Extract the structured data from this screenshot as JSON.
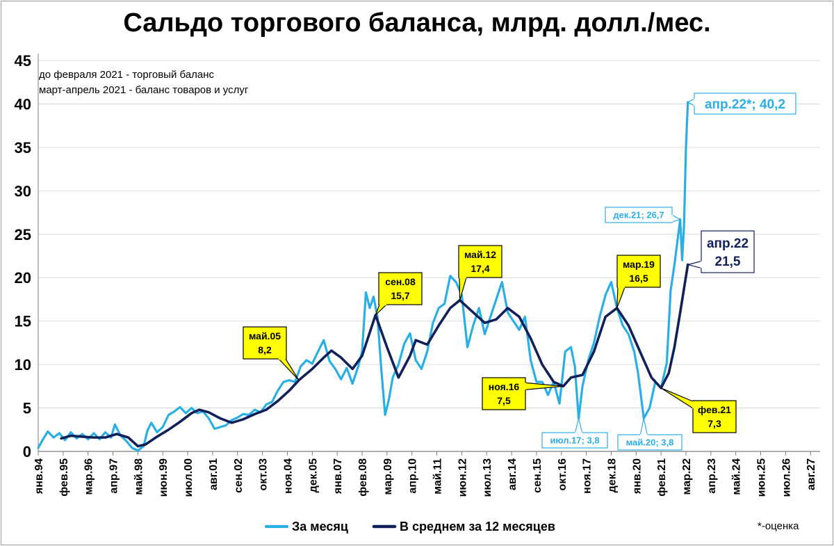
{
  "chart_data": {
    "type": "line",
    "title": "Сальдо торгового баланса, млрд. долл./мес.",
    "notes": [
      "до февраля 2021 - торговый баланс",
      "март-апрель 2021 - баланс товаров и услуг"
    ],
    "footnote": "*-оценка",
    "ylim": [
      0,
      45
    ],
    "yticks": [
      0,
      5,
      10,
      15,
      20,
      25,
      30,
      35,
      40,
      45
    ],
    "x_range": [
      "1994-01",
      "2027-12"
    ],
    "x_ticks": [
      {
        "date": "1994-01",
        "label": "янв.94"
      },
      {
        "date": "1995-02",
        "label": "фев.95"
      },
      {
        "date": "1996-03",
        "label": "мар.96"
      },
      {
        "date": "1997-04",
        "label": "апр.97"
      },
      {
        "date": "1998-05",
        "label": "май.98"
      },
      {
        "date": "1999-06",
        "label": "июн.99"
      },
      {
        "date": "2000-07",
        "label": "июл.00"
      },
      {
        "date": "2001-08",
        "label": "авг.01"
      },
      {
        "date": "2002-09",
        "label": "сен.02"
      },
      {
        "date": "2003-10",
        "label": "окт.03"
      },
      {
        "date": "2004-11",
        "label": "ноя.04"
      },
      {
        "date": "2005-12",
        "label": "дек.05"
      },
      {
        "date": "2007-01",
        "label": "янв.07"
      },
      {
        "date": "2008-02",
        "label": "фев.08"
      },
      {
        "date": "2009-03",
        "label": "мар.09"
      },
      {
        "date": "2010-04",
        "label": "апр.10"
      },
      {
        "date": "2011-05",
        "label": "май.11"
      },
      {
        "date": "2012-06",
        "label": "июн.12"
      },
      {
        "date": "2013-07",
        "label": "июл.13"
      },
      {
        "date": "2014-08",
        "label": "авг.14"
      },
      {
        "date": "2015-09",
        "label": "сен.15"
      },
      {
        "date": "2016-10",
        "label": "окт.16"
      },
      {
        "date": "2017-11",
        "label": "ноя.17"
      },
      {
        "date": "2018-12",
        "label": "дек.18"
      },
      {
        "date": "2020-01",
        "label": "янв.20"
      },
      {
        "date": "2021-02",
        "label": "фев.21"
      },
      {
        "date": "2022-03",
        "label": "мар.22"
      },
      {
        "date": "2023-04",
        "label": "апр.23"
      },
      {
        "date": "2024-05",
        "label": "май.24"
      },
      {
        "date": "2025-06",
        "label": "июн.25"
      },
      {
        "date": "2026-07",
        "label": "июл.26"
      },
      {
        "date": "2027-08",
        "label": "авг.27"
      }
    ],
    "legend": {
      "position": "bottom",
      "items": [
        "За месяц",
        "В среднем за 12 месяцев"
      ]
    },
    "series": [
      {
        "name": "За месяц",
        "color": "#29aee6",
        "points": [
          [
            "1994-01",
            0.4
          ],
          [
            "1994-03",
            1.2
          ],
          [
            "1994-06",
            2.3
          ],
          [
            "1994-09",
            1.6
          ],
          [
            "1994-12",
            2.1
          ],
          [
            "1995-03",
            1.3
          ],
          [
            "1995-06",
            2.2
          ],
          [
            "1995-09",
            1.5
          ],
          [
            "1995-12",
            2.0
          ],
          [
            "1996-03",
            1.4
          ],
          [
            "1996-06",
            2.1
          ],
          [
            "1996-09",
            1.4
          ],
          [
            "1996-12",
            2.2
          ],
          [
            "1997-03",
            1.6
          ],
          [
            "1997-05",
            3.1
          ],
          [
            "1997-08",
            1.8
          ],
          [
            "1997-11",
            1.2
          ],
          [
            "1998-02",
            0.4
          ],
          [
            "1998-05",
            0.1
          ],
          [
            "1998-08",
            0.6
          ],
          [
            "1998-10",
            2.4
          ],
          [
            "1998-12",
            3.3
          ],
          [
            "1999-03",
            2.2
          ],
          [
            "1999-06",
            2.8
          ],
          [
            "1999-09",
            4.2
          ],
          [
            "1999-12",
            4.6
          ],
          [
            "2000-03",
            5.1
          ],
          [
            "2000-06",
            4.4
          ],
          [
            "2000-09",
            5.0
          ],
          [
            "2000-12",
            4.4
          ],
          [
            "2001-03",
            4.6
          ],
          [
            "2001-06",
            3.8
          ],
          [
            "2001-09",
            2.6
          ],
          [
            "2001-12",
            2.8
          ],
          [
            "2002-03",
            3.0
          ],
          [
            "2002-06",
            3.6
          ],
          [
            "2002-09",
            3.9
          ],
          [
            "2002-12",
            4.3
          ],
          [
            "2003-03",
            4.2
          ],
          [
            "2003-06",
            4.8
          ],
          [
            "2003-09",
            4.5
          ],
          [
            "2003-12",
            5.4
          ],
          [
            "2004-03",
            5.7
          ],
          [
            "2004-06",
            7.0
          ],
          [
            "2004-09",
            8.0
          ],
          [
            "2004-12",
            8.2
          ],
          [
            "2005-03",
            8.0
          ],
          [
            "2005-06",
            9.8
          ],
          [
            "2005-09",
            10.5
          ],
          [
            "2005-12",
            10.1
          ],
          [
            "2006-03",
            11.5
          ],
          [
            "2006-06",
            12.8
          ],
          [
            "2006-09",
            10.4
          ],
          [
            "2006-12",
            9.5
          ],
          [
            "2007-03",
            8.3
          ],
          [
            "2007-06",
            9.6
          ],
          [
            "2007-09",
            7.8
          ],
          [
            "2007-12",
            9.8
          ],
          [
            "2008-02",
            11.5
          ],
          [
            "2008-04",
            18.3
          ],
          [
            "2008-06",
            16.5
          ],
          [
            "2008-08",
            17.8
          ],
          [
            "2008-10",
            15.5
          ],
          [
            "2008-12",
            9.5
          ],
          [
            "2009-02",
            4.2
          ],
          [
            "2009-04",
            6.0
          ],
          [
            "2009-06",
            8.5
          ],
          [
            "2009-09",
            10.0
          ],
          [
            "2009-12",
            12.4
          ],
          [
            "2010-03",
            13.6
          ],
          [
            "2010-06",
            10.5
          ],
          [
            "2010-09",
            9.5
          ],
          [
            "2010-12",
            11.5
          ],
          [
            "2011-03",
            14.8
          ],
          [
            "2011-06",
            16.5
          ],
          [
            "2011-09",
            17.0
          ],
          [
            "2011-12",
            20.2
          ],
          [
            "2012-03",
            19.5
          ],
          [
            "2012-06",
            18.0
          ],
          [
            "2012-09",
            12.0
          ],
          [
            "2012-12",
            14.5
          ],
          [
            "2013-03",
            16.5
          ],
          [
            "2013-06",
            13.5
          ],
          [
            "2013-09",
            15.5
          ],
          [
            "2013-12",
            17.5
          ],
          [
            "2014-03",
            19.5
          ],
          [
            "2014-06",
            16.0
          ],
          [
            "2014-09",
            15.0
          ],
          [
            "2014-12",
            14.0
          ],
          [
            "2015-03",
            15.5
          ],
          [
            "2015-06",
            10.5
          ],
          [
            "2015-09",
            8.0
          ],
          [
            "2015-12",
            8.0
          ],
          [
            "2016-03",
            6.5
          ],
          [
            "2016-06",
            8.0
          ],
          [
            "2016-09",
            5.5
          ],
          [
            "2016-12",
            11.5
          ],
          [
            "2017-03",
            12.0
          ],
          [
            "2017-05",
            9.8
          ],
          [
            "2017-07",
            3.8
          ],
          [
            "2017-09",
            7.5
          ],
          [
            "2017-12",
            10.5
          ],
          [
            "2018-03",
            12.5
          ],
          [
            "2018-06",
            15.5
          ],
          [
            "2018-09",
            18.0
          ],
          [
            "2018-12",
            19.5
          ],
          [
            "2019-03",
            16.5
          ],
          [
            "2019-06",
            14.5
          ],
          [
            "2019-09",
            13.5
          ],
          [
            "2019-12",
            11.5
          ],
          [
            "2020-02",
            9.0
          ],
          [
            "2020-05",
            3.8
          ],
          [
            "2020-08",
            5.0
          ],
          [
            "2020-11",
            8.0
          ],
          [
            "2021-02",
            7.3
          ],
          [
            "2021-05",
            10.2
          ],
          [
            "2021-07",
            18.5
          ],
          [
            "2021-09",
            21.5
          ],
          [
            "2021-12",
            26.7
          ],
          [
            "2022-01",
            22.0
          ],
          [
            "2022-02",
            26.0
          ],
          [
            "2022-03",
            35.0
          ],
          [
            "2022-04",
            40.2
          ]
        ]
      },
      {
        "name": "В среднем за 12 месяцев",
        "color": "#10205a",
        "points": [
          [
            "1995-01",
            1.5
          ],
          [
            "1995-06",
            1.8
          ],
          [
            "1995-12",
            1.7
          ],
          [
            "1996-06",
            1.6
          ],
          [
            "1996-12",
            1.6
          ],
          [
            "1997-06",
            2.0
          ],
          [
            "1997-12",
            1.6
          ],
          [
            "1998-05",
            0.6
          ],
          [
            "1998-09",
            0.8
          ],
          [
            "1999-03",
            1.7
          ],
          [
            "1999-09",
            2.5
          ],
          [
            "2000-03",
            3.4
          ],
          [
            "2000-09",
            4.4
          ],
          [
            "2001-01",
            4.8
          ],
          [
            "2001-06",
            4.5
          ],
          [
            "2001-12",
            3.8
          ],
          [
            "2002-06",
            3.3
          ],
          [
            "2002-12",
            3.7
          ],
          [
            "2003-06",
            4.3
          ],
          [
            "2003-12",
            4.8
          ],
          [
            "2004-06",
            5.8
          ],
          [
            "2004-12",
            7.0
          ],
          [
            "2005-05",
            8.2
          ],
          [
            "2005-12",
            9.5
          ],
          [
            "2006-06",
            10.8
          ],
          [
            "2006-10",
            11.6
          ],
          [
            "2007-03",
            10.8
          ],
          [
            "2007-09",
            9.5
          ],
          [
            "2008-02",
            11.0
          ],
          [
            "2008-09",
            15.7
          ],
          [
            "2009-03",
            12.0
          ],
          [
            "2009-09",
            8.5
          ],
          [
            "2010-03",
            11.0
          ],
          [
            "2010-06",
            12.8
          ],
          [
            "2010-12",
            12.3
          ],
          [
            "2011-06",
            14.5
          ],
          [
            "2011-12",
            16.5
          ],
          [
            "2012-05",
            17.4
          ],
          [
            "2012-12",
            16.0
          ],
          [
            "2013-06",
            14.8
          ],
          [
            "2013-12",
            15.2
          ],
          [
            "2014-06",
            16.5
          ],
          [
            "2014-12",
            15.5
          ],
          [
            "2015-06",
            13.0
          ],
          [
            "2015-12",
            10.0
          ],
          [
            "2016-06",
            8.0
          ],
          [
            "2016-11",
            7.5
          ],
          [
            "2017-03",
            8.5
          ],
          [
            "2017-09",
            8.8
          ],
          [
            "2018-03",
            11.5
          ],
          [
            "2018-09",
            15.5
          ],
          [
            "2019-03",
            16.5
          ],
          [
            "2019-09",
            14.5
          ],
          [
            "2020-03",
            11.5
          ],
          [
            "2020-09",
            8.5
          ],
          [
            "2021-02",
            7.3
          ],
          [
            "2021-06",
            9.0
          ],
          [
            "2021-09",
            12.0
          ],
          [
            "2021-12",
            16.0
          ],
          [
            "2022-04",
            21.5
          ]
        ]
      }
    ],
    "annotations": [
      {
        "text": [
          "май.05",
          "8,2"
        ],
        "date": "2005-05",
        "value": 8.2,
        "style": "yellow"
      },
      {
        "text": [
          "сен.08",
          "15,7"
        ],
        "date": "2008-09",
        "value": 15.7,
        "style": "yellow"
      },
      {
        "text": [
          "май.12",
          "17,4"
        ],
        "date": "2012-05",
        "value": 17.4,
        "style": "yellow"
      },
      {
        "text": [
          "ноя.16",
          "7,5"
        ],
        "date": "2016-11",
        "value": 7.5,
        "style": "yellow"
      },
      {
        "text": [
          "мар.19",
          "16,5"
        ],
        "date": "2019-03",
        "value": 16.5,
        "style": "yellow"
      },
      {
        "text": [
          "фев.21",
          "7,3"
        ],
        "date": "2021-02",
        "value": 7.3,
        "style": "yellow"
      },
      {
        "text": [
          "июл.17; 3,8"
        ],
        "date": "2017-07",
        "value": 3.8,
        "style": "light"
      },
      {
        "text": [
          "май.20; 3,8"
        ],
        "date": "2020-05",
        "value": 3.8,
        "style": "light"
      },
      {
        "text": [
          "дек.21; 26,7"
        ],
        "date": "2021-12",
        "value": 26.7,
        "style": "light"
      },
      {
        "text": [
          "апр.22*; 40,2"
        ],
        "date": "2022-04",
        "value": 40.2,
        "style": "light-big"
      },
      {
        "text": [
          "апр.22",
          "21,5"
        ],
        "date": "2022-04",
        "value": 21.5,
        "style": "dark-big"
      }
    ]
  }
}
